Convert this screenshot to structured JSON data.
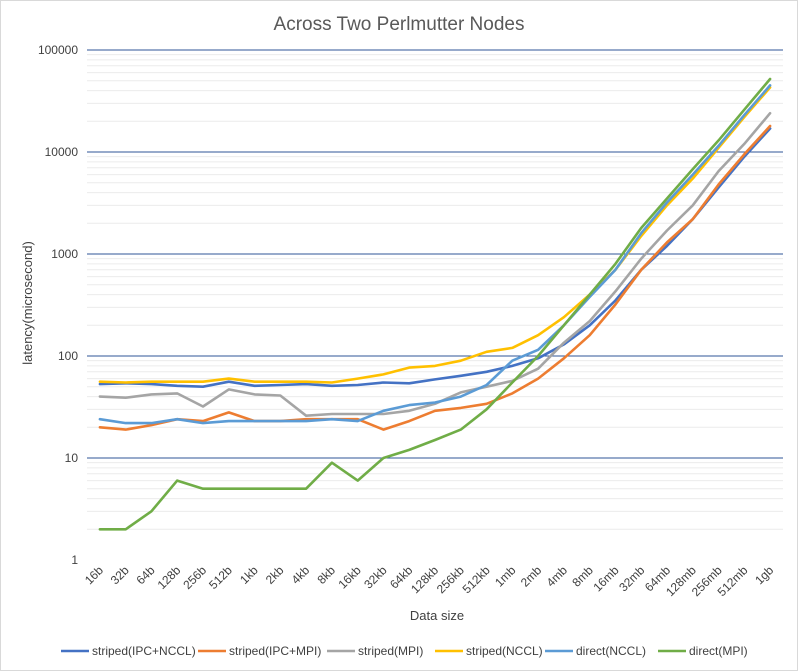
{
  "chart_data": {
    "type": "line",
    "title": "Across Two Perlmutter Nodes",
    "xlabel": "Data size",
    "ylabel": "latency(microsecond)",
    "yscale": "log",
    "ylim": [
      1,
      100000
    ],
    "y_ticks": [
      "1",
      "10",
      "100",
      "1000",
      "10000",
      "100000"
    ],
    "grid": "major and minor horizontal",
    "legend_position": "bottom",
    "categories": [
      "16b",
      "32b",
      "64b",
      "128b",
      "256b",
      "512b",
      "1kb",
      "2kb",
      "4kb",
      "8kb",
      "16kb",
      "32kb",
      "64kb",
      "128kb",
      "256kb",
      "512kb",
      "1mb",
      "2mb",
      "4mb",
      "8mb",
      "16mb",
      "32mb",
      "64mb",
      "128mb",
      "256mb",
      "512mb",
      "1gb"
    ],
    "series": [
      {
        "name": "striped(IPC+NCCL)",
        "color": "#4472C4",
        "values": [
          53,
          54,
          53,
          51,
          50,
          56,
          51,
          52,
          53,
          51,
          52,
          55,
          54,
          59,
          64,
          70,
          80,
          95,
          130,
          200,
          350,
          700,
          1200,
          2200,
          4500,
          9000,
          17000
        ]
      },
      {
        "name": "striped(IPC+MPI)",
        "color": "#ED7D31",
        "values": [
          20,
          19,
          21,
          24,
          23,
          28,
          23,
          23,
          24,
          24,
          24,
          19,
          23,
          29,
          31,
          34,
          43,
          60,
          95,
          160,
          320,
          700,
          1300,
          2200,
          4800,
          9500,
          18000
        ]
      },
      {
        "name": "striped(MPI)",
        "color": "#A5A5A5",
        "values": [
          40,
          39,
          42,
          43,
          32,
          47,
          42,
          41,
          26,
          27,
          27,
          27,
          29,
          34,
          44,
          50,
          57,
          75,
          135,
          220,
          430,
          900,
          1700,
          3000,
          6500,
          12000,
          24000
        ]
      },
      {
        "name": "striped(NCCL)",
        "color": "#FFC000",
        "values": [
          56,
          55,
          56,
          56,
          56,
          60,
          56,
          56,
          56,
          55,
          60,
          66,
          77,
          80,
          90,
          110,
          120,
          160,
          240,
          400,
          700,
          1500,
          3000,
          5500,
          11000,
          22000,
          43000
        ]
      },
      {
        "name": "direct(NCCL)",
        "color": "#5B9BD5",
        "values": [
          24,
          22,
          22,
          24,
          22,
          23,
          23,
          23,
          23,
          24,
          23,
          29,
          33,
          35,
          40,
          52,
          90,
          115,
          200,
          380,
          700,
          1600,
          3200,
          6000,
          11500,
          23000,
          45000
        ]
      },
      {
        "name": "direct(MPI)",
        "color": "#70AD47",
        "values": [
          2,
          2,
          3,
          6,
          5,
          5,
          5,
          5,
          5,
          9,
          6,
          10,
          12,
          15,
          19,
          30,
          55,
          100,
          200,
          400,
          800,
          1800,
          3500,
          6800,
          13000,
          26000,
          52000
        ]
      }
    ]
  }
}
